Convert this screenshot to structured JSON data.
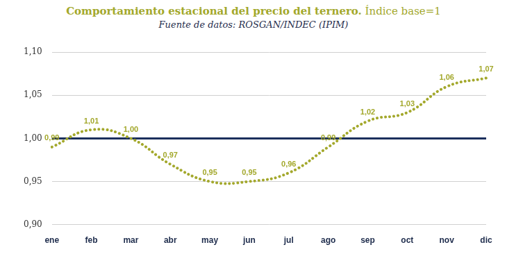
{
  "chart_data": {
    "type": "line",
    "title": "Comportamiento estacional del precio del ternero.",
    "title_note": "Índice base=1",
    "subtitle": "Fuente de datos: ROSGAN/INDEC (IPIM)",
    "categories": [
      "ene",
      "feb",
      "mar",
      "abr",
      "may",
      "jun",
      "jul",
      "ago",
      "sep",
      "oct",
      "nov",
      "dic"
    ],
    "values": [
      0.99,
      1.01,
      1.0,
      0.97,
      0.95,
      0.95,
      0.96,
      0.99,
      1.02,
      1.03,
      1.06,
      1.07
    ],
    "value_labels": [
      "0,99",
      "1,01",
      "1,00",
      "0,97",
      "0,95",
      "0,95",
      "0,96",
      "0,99",
      "1,02",
      "1,03",
      "1,06",
      "1,07"
    ],
    "data_labels": true,
    "color": "#a3a82c",
    "line_style": "dotted",
    "marker": "none",
    "reference_line": {
      "value": 1.0,
      "color": "#1b2f5c"
    },
    "ylim": [
      0.9,
      1.1
    ],
    "yticks": [
      {
        "value": 0.9,
        "label": "0,90"
      },
      {
        "value": 0.95,
        "label": "0,95"
      },
      {
        "value": 1.0,
        "label": "1,00"
      },
      {
        "value": 1.05,
        "label": "1,05"
      },
      {
        "value": 1.1,
        "label": "1,10"
      }
    ],
    "grid": true
  }
}
